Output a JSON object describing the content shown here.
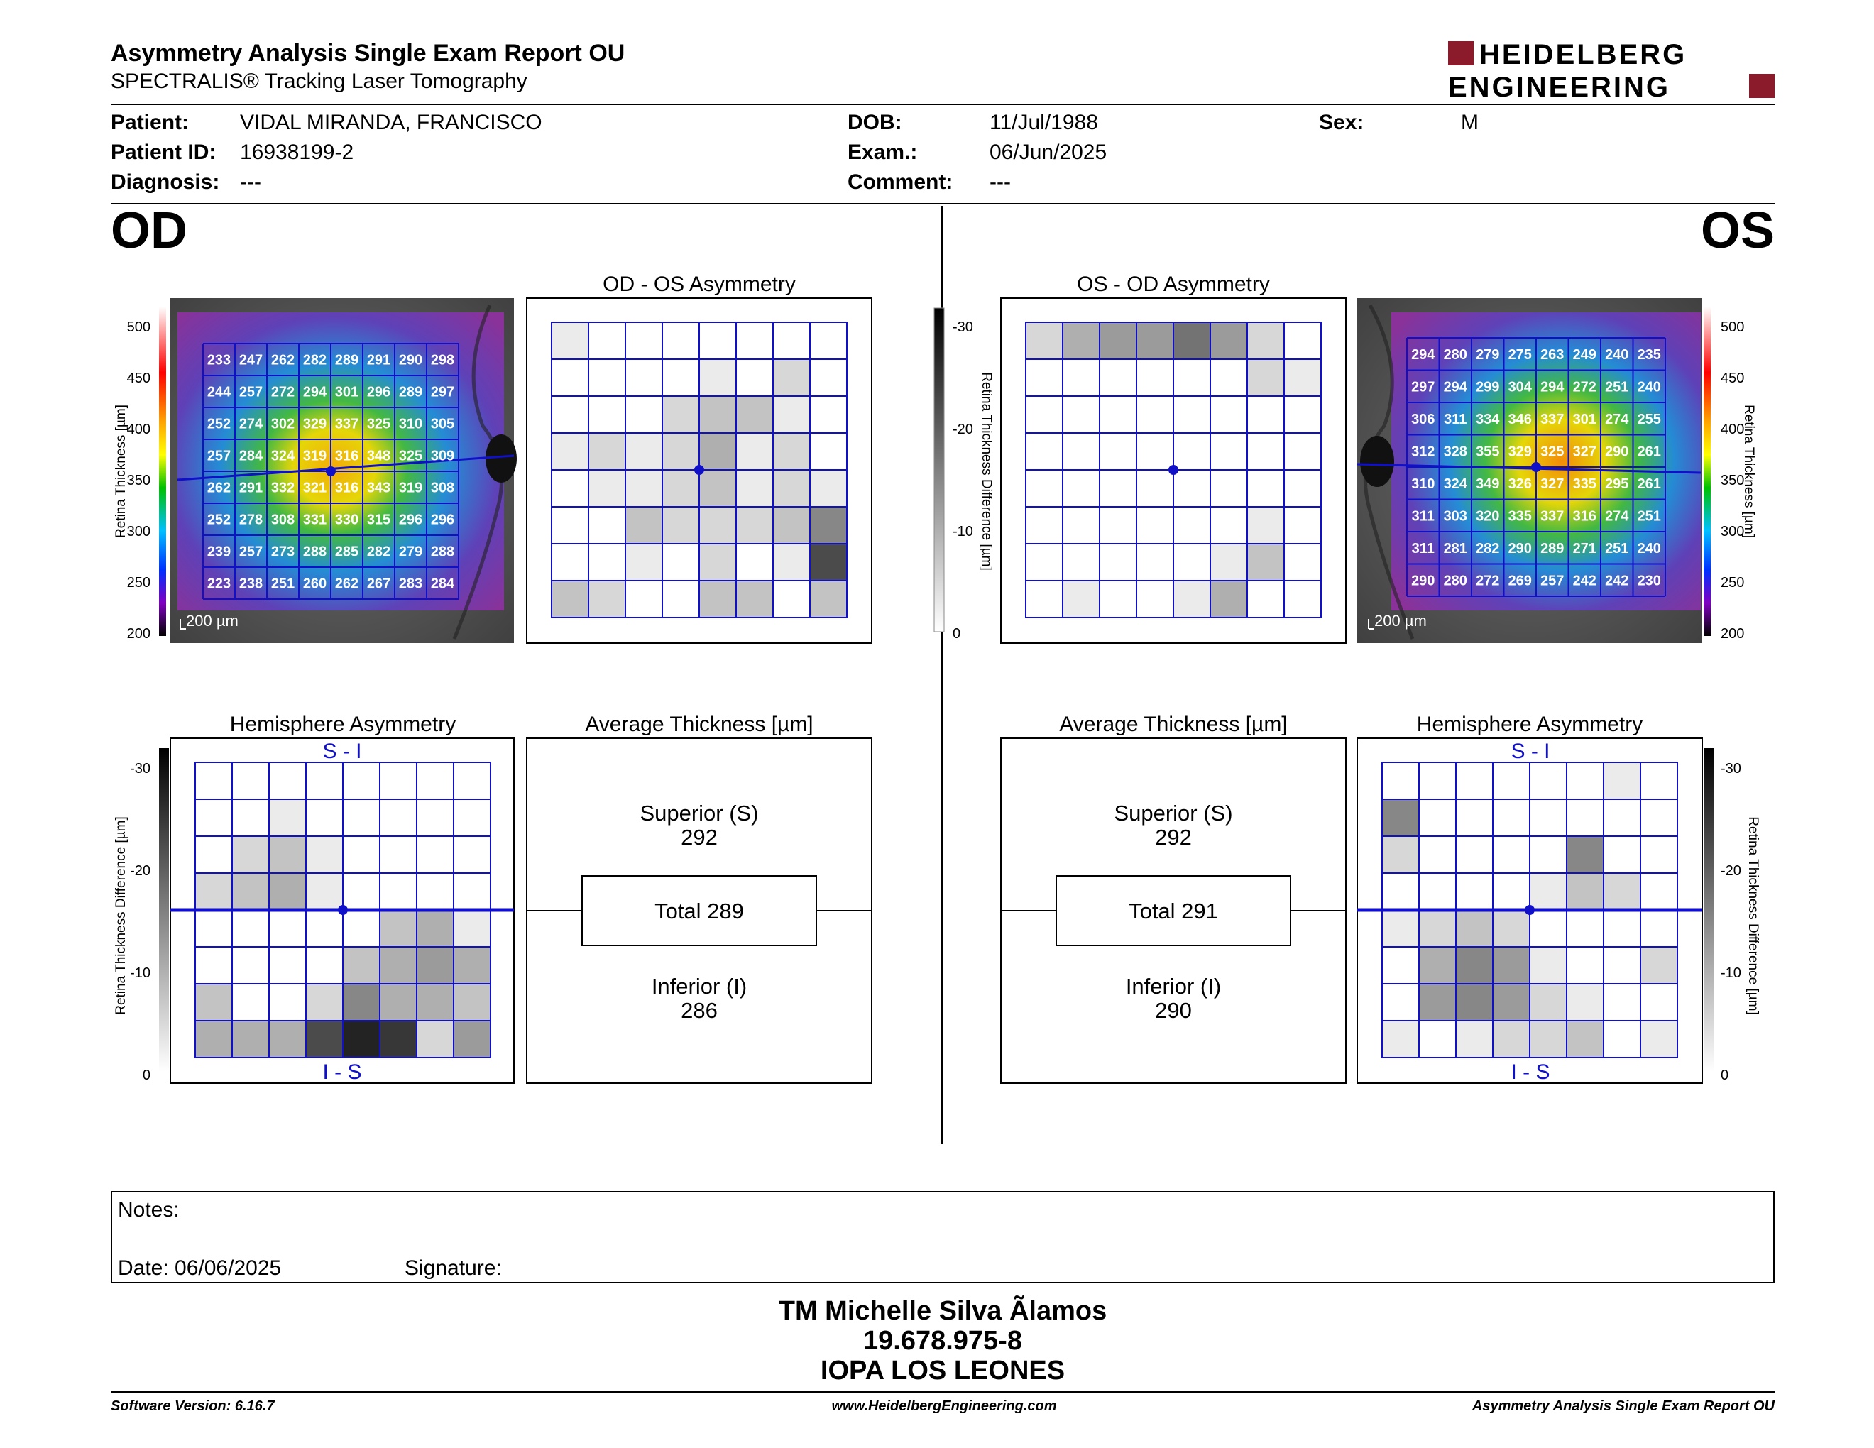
{
  "report": {
    "title": "Asymmetry Analysis Single Exam Report OU",
    "subtitle": "SPECTRALIS® Tracking Laser Tomography",
    "logo_line1": "HEIDELBERG",
    "logo_line2": "ENGINEERING",
    "brand_color": "#8b1a2b",
    "grid_color": "#1010c8"
  },
  "patient": {
    "patient_label": "Patient:",
    "patient_value": "VIDAL MIRANDA, FRANCISCO",
    "id_label": "Patient ID:",
    "id_value": "16938199-2",
    "diagnosis_label": "Diagnosis:",
    "diagnosis_value": "---",
    "dob_label": "DOB:",
    "dob_value": "11/Jul/1988",
    "exam_label": "Exam.:",
    "exam_value": "06/Jun/2025",
    "comment_label": "Comment:",
    "comment_value": "---",
    "sex_label": "Sex:",
    "sex_value": "M"
  },
  "od": {
    "eye": "OD",
    "asym_title": "OD - OS Asymmetry",
    "hemi_title": "Hemisphere Asymmetry",
    "hemi_top": "S - I",
    "hemi_bottom": "I - S",
    "avg_title": "Average Thickness [µm]",
    "superior_label": "Superior (S)",
    "superior_value": "292",
    "total_label": "Total 289",
    "inferior_label": "Inferior (I)",
    "inferior_value": "286",
    "scale_bar": "200 µm",
    "thickness_grid": [
      [
        233,
        247,
        262,
        282,
        289,
        291,
        290,
        298
      ],
      [
        244,
        257,
        272,
        294,
        301,
        296,
        289,
        297
      ],
      [
        252,
        274,
        302,
        329,
        337,
        325,
        310,
        305
      ],
      [
        257,
        284,
        324,
        319,
        316,
        348,
        325,
        309
      ],
      [
        262,
        291,
        332,
        321,
        316,
        343,
        319,
        308
      ],
      [
        252,
        278,
        308,
        331,
        330,
        315,
        296,
        296
      ],
      [
        239,
        257,
        273,
        288,
        285,
        282,
        279,
        288
      ],
      [
        223,
        238,
        251,
        260,
        262,
        267,
        283,
        284
      ]
    ],
    "asym_grid": [
      [
        1,
        0,
        0,
        0,
        0,
        0,
        0,
        0
      ],
      [
        0,
        0,
        0,
        0,
        1,
        0,
        2,
        0
      ],
      [
        0,
        0,
        0,
        2,
        3,
        3,
        1,
        0
      ],
      [
        1,
        2,
        1,
        2,
        4,
        1,
        2,
        0
      ],
      [
        0,
        1,
        1,
        2,
        3,
        1,
        2,
        1
      ],
      [
        0,
        0,
        3,
        2,
        2,
        2,
        3,
        6
      ],
      [
        0,
        0,
        1,
        0,
        2,
        0,
        1,
        9
      ],
      [
        3,
        2,
        0,
        0,
        3,
        3,
        0,
        3
      ]
    ],
    "hemi_grid": [
      [
        0,
        0,
        0,
        0,
        0,
        0,
        0,
        0
      ],
      [
        0,
        0,
        1,
        0,
        0,
        0,
        0,
        0
      ],
      [
        0,
        2,
        3,
        1,
        0,
        0,
        0,
        0
      ],
      [
        2,
        3,
        4,
        1,
        0,
        0,
        0,
        0
      ],
      [
        0,
        0,
        0,
        0,
        0,
        3,
        4,
        1
      ],
      [
        0,
        0,
        0,
        0,
        3,
        4,
        5,
        4
      ],
      [
        3,
        0,
        0,
        2,
        6,
        4,
        4,
        3
      ],
      [
        4,
        4,
        4,
        9,
        11,
        10,
        2,
        5
      ]
    ]
  },
  "os": {
    "eye": "OS",
    "asym_title": "OS - OD Asymmetry",
    "hemi_title": "Hemisphere Asymmetry",
    "hemi_top": "S - I",
    "hemi_bottom": "I - S",
    "avg_title": "Average Thickness [µm]",
    "superior_label": "Superior (S)",
    "superior_value": "292",
    "total_label": "Total 291",
    "inferior_label": "Inferior (I)",
    "inferior_value": "290",
    "scale_bar": "200 µm",
    "thickness_grid": [
      [
        294,
        280,
        279,
        275,
        263,
        249,
        240,
        235
      ],
      [
        297,
        294,
        299,
        304,
        294,
        272,
        251,
        240
      ],
      [
        306,
        311,
        334,
        346,
        337,
        301,
        274,
        255
      ],
      [
        312,
        328,
        355,
        329,
        325,
        327,
        290,
        261
      ],
      [
        310,
        324,
        349,
        326,
        327,
        335,
        295,
        261
      ],
      [
        311,
        303,
        320,
        335,
        337,
        316,
        274,
        251
      ],
      [
        311,
        281,
        282,
        290,
        289,
        271,
        251,
        240
      ],
      [
        290,
        280,
        272,
        269,
        257,
        242,
        242,
        230
      ]
    ],
    "asym_grid": [
      [
        2,
        4,
        5,
        5,
        7,
        5,
        2,
        0
      ],
      [
        0,
        0,
        0,
        0,
        0,
        0,
        2,
        1
      ],
      [
        0,
        0,
        0,
        0,
        0,
        0,
        0,
        0
      ],
      [
        0,
        0,
        0,
        0,
        0,
        0,
        0,
        0
      ],
      [
        0,
        0,
        0,
        0,
        0,
        0,
        0,
        0
      ],
      [
        0,
        0,
        0,
        0,
        0,
        0,
        1,
        0
      ],
      [
        0,
        0,
        0,
        0,
        0,
        1,
        3,
        0
      ],
      [
        0,
        1,
        0,
        0,
        1,
        4,
        0,
        0
      ]
    ],
    "hemi_grid": [
      [
        0,
        0,
        0,
        0,
        0,
        0,
        1,
        0
      ],
      [
        6,
        0,
        0,
        0,
        0,
        0,
        0,
        0
      ],
      [
        2,
        0,
        0,
        0,
        0,
        6,
        0,
        0
      ],
      [
        0,
        0,
        0,
        0,
        1,
        3,
        2,
        0
      ],
      [
        1,
        2,
        3,
        2,
        0,
        0,
        0,
        0
      ],
      [
        0,
        4,
        6,
        5,
        1,
        0,
        0,
        2
      ],
      [
        0,
        5,
        6,
        5,
        2,
        1,
        0,
        0
      ],
      [
        1,
        0,
        1,
        2,
        2,
        3,
        0,
        1
      ]
    ]
  },
  "scales": {
    "thickness_label": "Retina Thickness [µm]",
    "thickness_ticks": [
      "500",
      "450",
      "400",
      "350",
      "300",
      "250",
      "200"
    ],
    "diff_label": "Retina Thickness Difference [µm]",
    "diff_ticks": [
      "-30",
      "-20",
      "-10",
      "0"
    ]
  },
  "notes": {
    "notes_label": "Notes:",
    "date_label": "Date: 06/06/2025",
    "signature_label": "Signature:"
  },
  "signature": {
    "name": "TM Michelle Silva Ãlamos",
    "rut": "19.678.975-8",
    "clinic": "IOPA LOS LEONES"
  },
  "footer": {
    "software": "Software Version: 6.16.7",
    "website": "www.HeidelbergEngineering.com",
    "report_name": "Asymmetry Analysis Single Exam Report OU"
  }
}
